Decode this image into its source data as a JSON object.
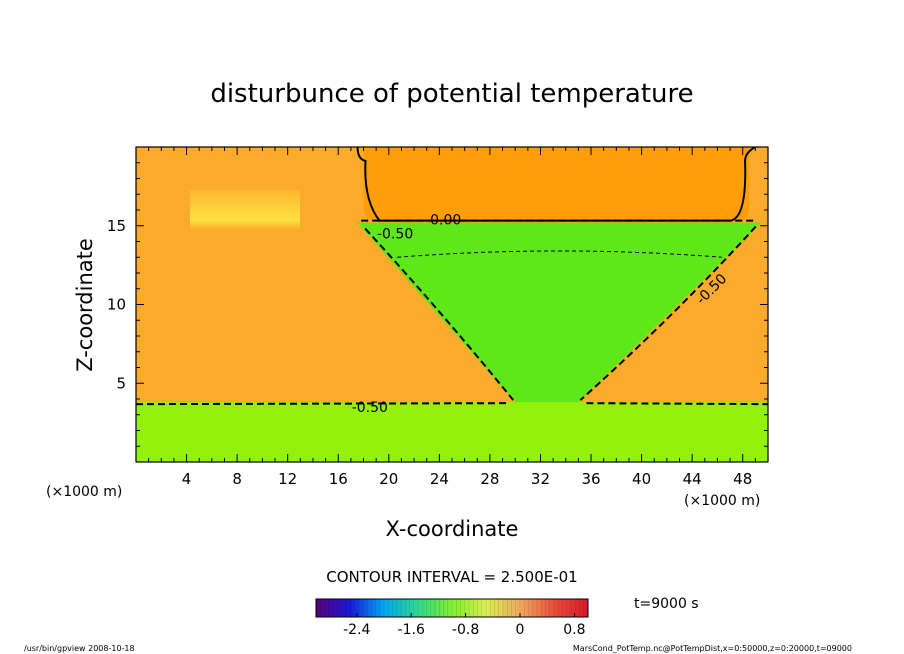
{
  "chart_data": {
    "type": "heatmap",
    "title": "disturbunce of potential temperature",
    "xlabel": "X-coordinate",
    "ylabel": "Z-coordinate",
    "x_unit": "(×1000 m)",
    "y_unit": "(×1000 m)",
    "xlim": [
      0,
      50
    ],
    "ylim": [
      0,
      20
    ],
    "x_ticks": [
      4,
      8,
      12,
      16,
      20,
      24,
      28,
      32,
      36,
      40,
      44,
      48
    ],
    "y_ticks": [
      5,
      10,
      15
    ],
    "contour_labels": [
      {
        "text": "0.00",
        "x": 24.5,
        "z": 15.4
      },
      {
        "text": "-0.50",
        "x": 20.5,
        "z": 14.5
      },
      {
        "text": "-0.50",
        "x": 45.5,
        "z": 11.0
      },
      {
        "text": "-0.50",
        "x": 18.5,
        "z": 3.5
      }
    ],
    "contour_interval_text": "CONTOUR INTERVAL = 2.500E-01",
    "colorbar": {
      "ticks": [
        "-2.4",
        "-1.6",
        "-0.8",
        "0",
        "0.8"
      ],
      "tick_values": [
        -2.4,
        -1.6,
        -0.8,
        0,
        0.8
      ],
      "range": [
        -3.0,
        1.0
      ],
      "stops": [
        "#5a007a",
        "#1a1ad8",
        "#00a8f0",
        "#30d890",
        "#80ee30",
        "#d8ee50",
        "#f0a860",
        "#e8503a",
        "#d81830"
      ]
    },
    "regions": {
      "lower_layer": {
        "z_top": 3.8,
        "color": "#93f20c"
      },
      "cone": {
        "z_top": 15.2,
        "z_bottom": 3.8,
        "x_top_left": 17.5,
        "x_top_right": 49.5,
        "x_bottom_left": 30.0,
        "x_bottom_right": 35.0,
        "color": "#5ee81a"
      },
      "upper_pocket": {
        "x_left": 18.0,
        "x_right": 48.5,
        "z_bottom": 15.2,
        "color": "#ff9d0a"
      },
      "background_color": "#fbab2b"
    }
  },
  "time_label": "t=9000 s",
  "footer": {
    "left": "/usr/bin/gpview   2008-10-18",
    "right": "MarsCond_PotTemp.nc@PotTempDist,x=0:50000,z=0:20000,t=09000"
  }
}
